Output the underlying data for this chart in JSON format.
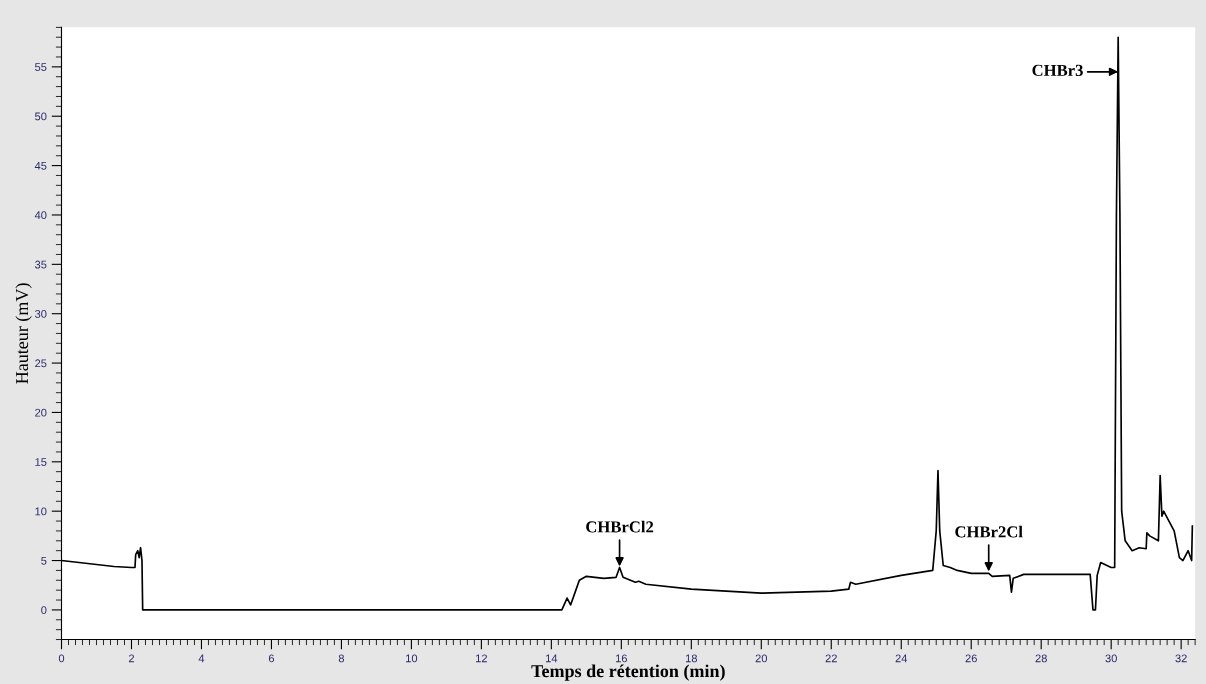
{
  "chart_data": {
    "type": "line",
    "xlabel": "Temps de rétention (min)",
    "ylabel": "Hauteur (mV)",
    "xlim": [
      0,
      32.4
    ],
    "ylim": [
      -3,
      59
    ],
    "xticks": [
      0,
      2,
      4,
      6,
      8,
      10,
      12,
      14,
      16,
      18,
      20,
      22,
      24,
      26,
      28,
      30,
      32
    ],
    "yticks": [
      0,
      5,
      10,
      15,
      20,
      25,
      30,
      35,
      40,
      45,
      50,
      55
    ],
    "grid": false,
    "legend": false,
    "marker": "none",
    "line_style": "solid",
    "series": [
      {
        "color": "#000000",
        "x": [
          0,
          0.5,
          1,
          1.5,
          2.0,
          2.1,
          2.12,
          2.18,
          2.22,
          2.26,
          2.3,
          2.32,
          14.3,
          14.45,
          14.55,
          14.65,
          14.8,
          15.0,
          15.5,
          15.85,
          15.95,
          16.05,
          16.4,
          16.5,
          16.7,
          18,
          20,
          22,
          22.5,
          22.55,
          22.7,
          24,
          24.9,
          25.0,
          25.05,
          25.1,
          25.2,
          25.4,
          25.6,
          26,
          26.5,
          26.6,
          27.1,
          27.15,
          27.2,
          27.5,
          28.5,
          29.4,
          29.48,
          29.55,
          29.6,
          29.7,
          30.0,
          30.1,
          30.15,
          30.2,
          30.25,
          30.3,
          30.4,
          30.6,
          30.8,
          31.0,
          31.02,
          31.1,
          31.35,
          31.4,
          31.45,
          31.5,
          31.8,
          31.95,
          32.05,
          32.2,
          32.3,
          32.32
        ],
        "values": [
          5.0,
          4.8,
          4.6,
          4.4,
          4.3,
          4.3,
          5.6,
          6.0,
          5.3,
          6.3,
          5.0,
          0,
          0,
          1.2,
          0.5,
          1.5,
          3.0,
          3.4,
          3.2,
          3.3,
          4.3,
          3.3,
          2.8,
          2.9,
          2.6,
          2.1,
          1.7,
          1.9,
          2.1,
          2.8,
          2.6,
          3.5,
          4.0,
          8,
          14.1,
          8,
          4.5,
          4.3,
          4.0,
          3.7,
          3.7,
          3.4,
          3.5,
          1.8,
          3.2,
          3.6,
          3.6,
          3.6,
          0,
          0,
          3.5,
          4.8,
          4.3,
          4.3,
          40,
          58,
          40,
          10,
          7,
          6,
          6.3,
          6.2,
          7.8,
          7.5,
          7.0,
          13.6,
          9.5,
          10,
          8,
          5.3,
          5.0,
          6.0,
          5.0,
          8.5
        ]
      }
    ],
    "annotations": [
      {
        "text": "CHBrCl2",
        "x": 15.95,
        "y": 4.4
      },
      {
        "text": "CHBr2Cl",
        "x": 26.5,
        "y": 3.9
      },
      {
        "text": "CHBr3",
        "x": 30.2,
        "y": 54.5
      }
    ]
  }
}
